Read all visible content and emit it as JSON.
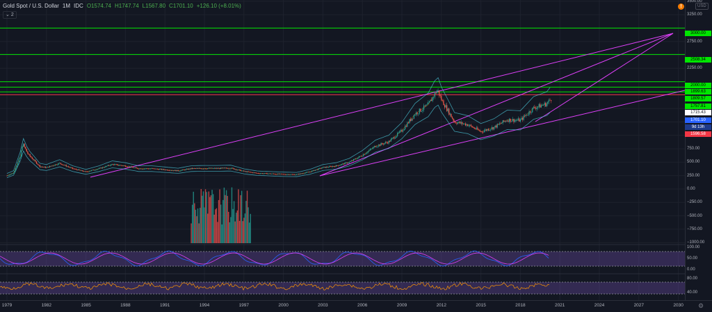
{
  "header": {
    "symbol": "Gold Spot / U.S. Dollar",
    "interval": "1M",
    "exchange": "IDC",
    "open": "O1574.74",
    "high": "H1747.74",
    "low": "L1567.80",
    "close": "C1701.10",
    "change": "+126.10 (+8.01%)",
    "sub_count": "2"
  },
  "currency": "USD",
  "price_axis": {
    "ticks": [
      "3500.00",
      "3250.00",
      "2750.00",
      "2250.00",
      "1500.00",
      "1250.00",
      "1000.00",
      "750.00",
      "500.00",
      "250.00",
      "0.00",
      "−250.00",
      "−500.00",
      "−750.00",
      "−1000.00"
    ],
    "tags": [
      "3000.00",
      "2508.34",
      "2000.00",
      "1899.63",
      "1809.57",
      "1757.81",
      "1715.43",
      "1701.10",
      "9d 13h",
      "1596.58"
    ]
  },
  "rsi_axis": [
    "100.00",
    "50.00",
    "0.00"
  ],
  "osc_axis": [
    "80.00",
    "40.00"
  ],
  "time_axis": [
    "1979",
    "1982",
    "1985",
    "1988",
    "1991",
    "1994",
    "1997",
    "2000",
    "2003",
    "2006",
    "2009",
    "2012",
    "2015",
    "2018",
    "2021",
    "2024",
    "2027",
    "2030"
  ],
  "colors": {
    "background": "#131722",
    "up": "#26a69a",
    "down": "#ef5350",
    "level": "#00e600",
    "trend": "#e040fb",
    "band": "#4dd0e1",
    "rsi_fill": "#7e57c2"
  },
  "chart_data": {
    "type": "candlestick",
    "x_range": [
      1979,
      2030
    ],
    "y_range": [
      -1000,
      3500
    ],
    "horizontal_levels": [
      3000,
      2508.34,
      2000,
      1899.63,
      1809.57,
      1757.81
    ],
    "close_series": [
      {
        "year": 1979,
        "close": 250
      },
      {
        "year": 1979.5,
        "close": 300
      },
      {
        "year": 1980,
        "close": 600
      },
      {
        "year": 1980.2,
        "close": 850
      },
      {
        "year": 1980.6,
        "close": 650
      },
      {
        "year": 1981,
        "close": 550
      },
      {
        "year": 1981.5,
        "close": 420
      },
      {
        "year": 1982,
        "close": 400
      },
      {
        "year": 1983,
        "close": 480
      },
      {
        "year": 1984,
        "close": 380
      },
      {
        "year": 1985,
        "close": 320
      },
      {
        "year": 1986,
        "close": 380
      },
      {
        "year": 1987,
        "close": 460
      },
      {
        "year": 1988,
        "close": 430
      },
      {
        "year": 1989,
        "close": 380
      },
      {
        "year": 1990,
        "close": 380
      },
      {
        "year": 1991,
        "close": 360
      },
      {
        "year": 1992,
        "close": 340
      },
      {
        "year": 1993,
        "close": 380
      },
      {
        "year": 1994,
        "close": 385
      },
      {
        "year": 1995,
        "close": 385
      },
      {
        "year": 1996,
        "close": 390
      },
      {
        "year": 1997,
        "close": 330
      },
      {
        "year": 1998,
        "close": 295
      },
      {
        "year": 1999,
        "close": 285
      },
      {
        "year": 2000,
        "close": 275
      },
      {
        "year": 2001,
        "close": 270
      },
      {
        "year": 2002,
        "close": 320
      },
      {
        "year": 2003,
        "close": 400
      },
      {
        "year": 2004,
        "close": 430
      },
      {
        "year": 2005,
        "close": 500
      },
      {
        "year": 2006,
        "close": 630
      },
      {
        "year": 2007,
        "close": 800
      },
      {
        "year": 2008,
        "close": 880
      },
      {
        "year": 2009,
        "close": 1090
      },
      {
        "year": 2010,
        "close": 1400
      },
      {
        "year": 2011,
        "close": 1570
      },
      {
        "year": 2011.7,
        "close": 1850
      },
      {
        "year": 2012,
        "close": 1670
      },
      {
        "year": 2013,
        "close": 1250
      },
      {
        "year": 2014,
        "close": 1200
      },
      {
        "year": 2015,
        "close": 1070
      },
      {
        "year": 2016,
        "close": 1150
      },
      {
        "year": 2017,
        "close": 1290
      },
      {
        "year": 2018,
        "close": 1280
      },
      {
        "year": 2019,
        "close": 1510
      },
      {
        "year": 2020,
        "close": 1590
      },
      {
        "year": 2020.4,
        "close": 1701.1
      }
    ]
  }
}
